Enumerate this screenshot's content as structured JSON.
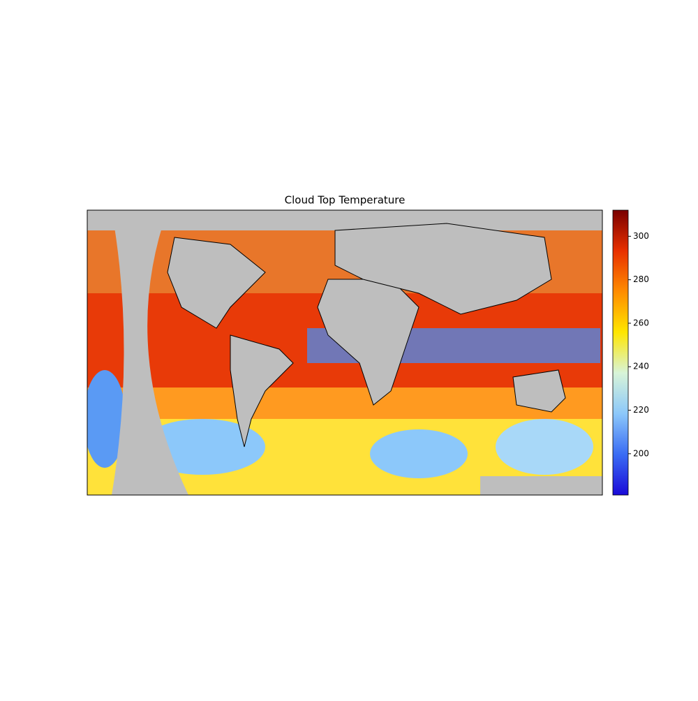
{
  "map": {
    "title": "Cloud Top Temperature",
    "colorbar": {
      "lim": [
        181,
        312
      ],
      "ticks": [
        200,
        220,
        240,
        260,
        280,
        300
      ],
      "colors": [
        "#1a0ad8",
        "#3a6cf4",
        "#8cc8fa",
        "#d8f4d8",
        "#ffe600",
        "#ff8c00",
        "#e83000",
        "#7a0000"
      ]
    },
    "background": "#bebebe"
  }
}
